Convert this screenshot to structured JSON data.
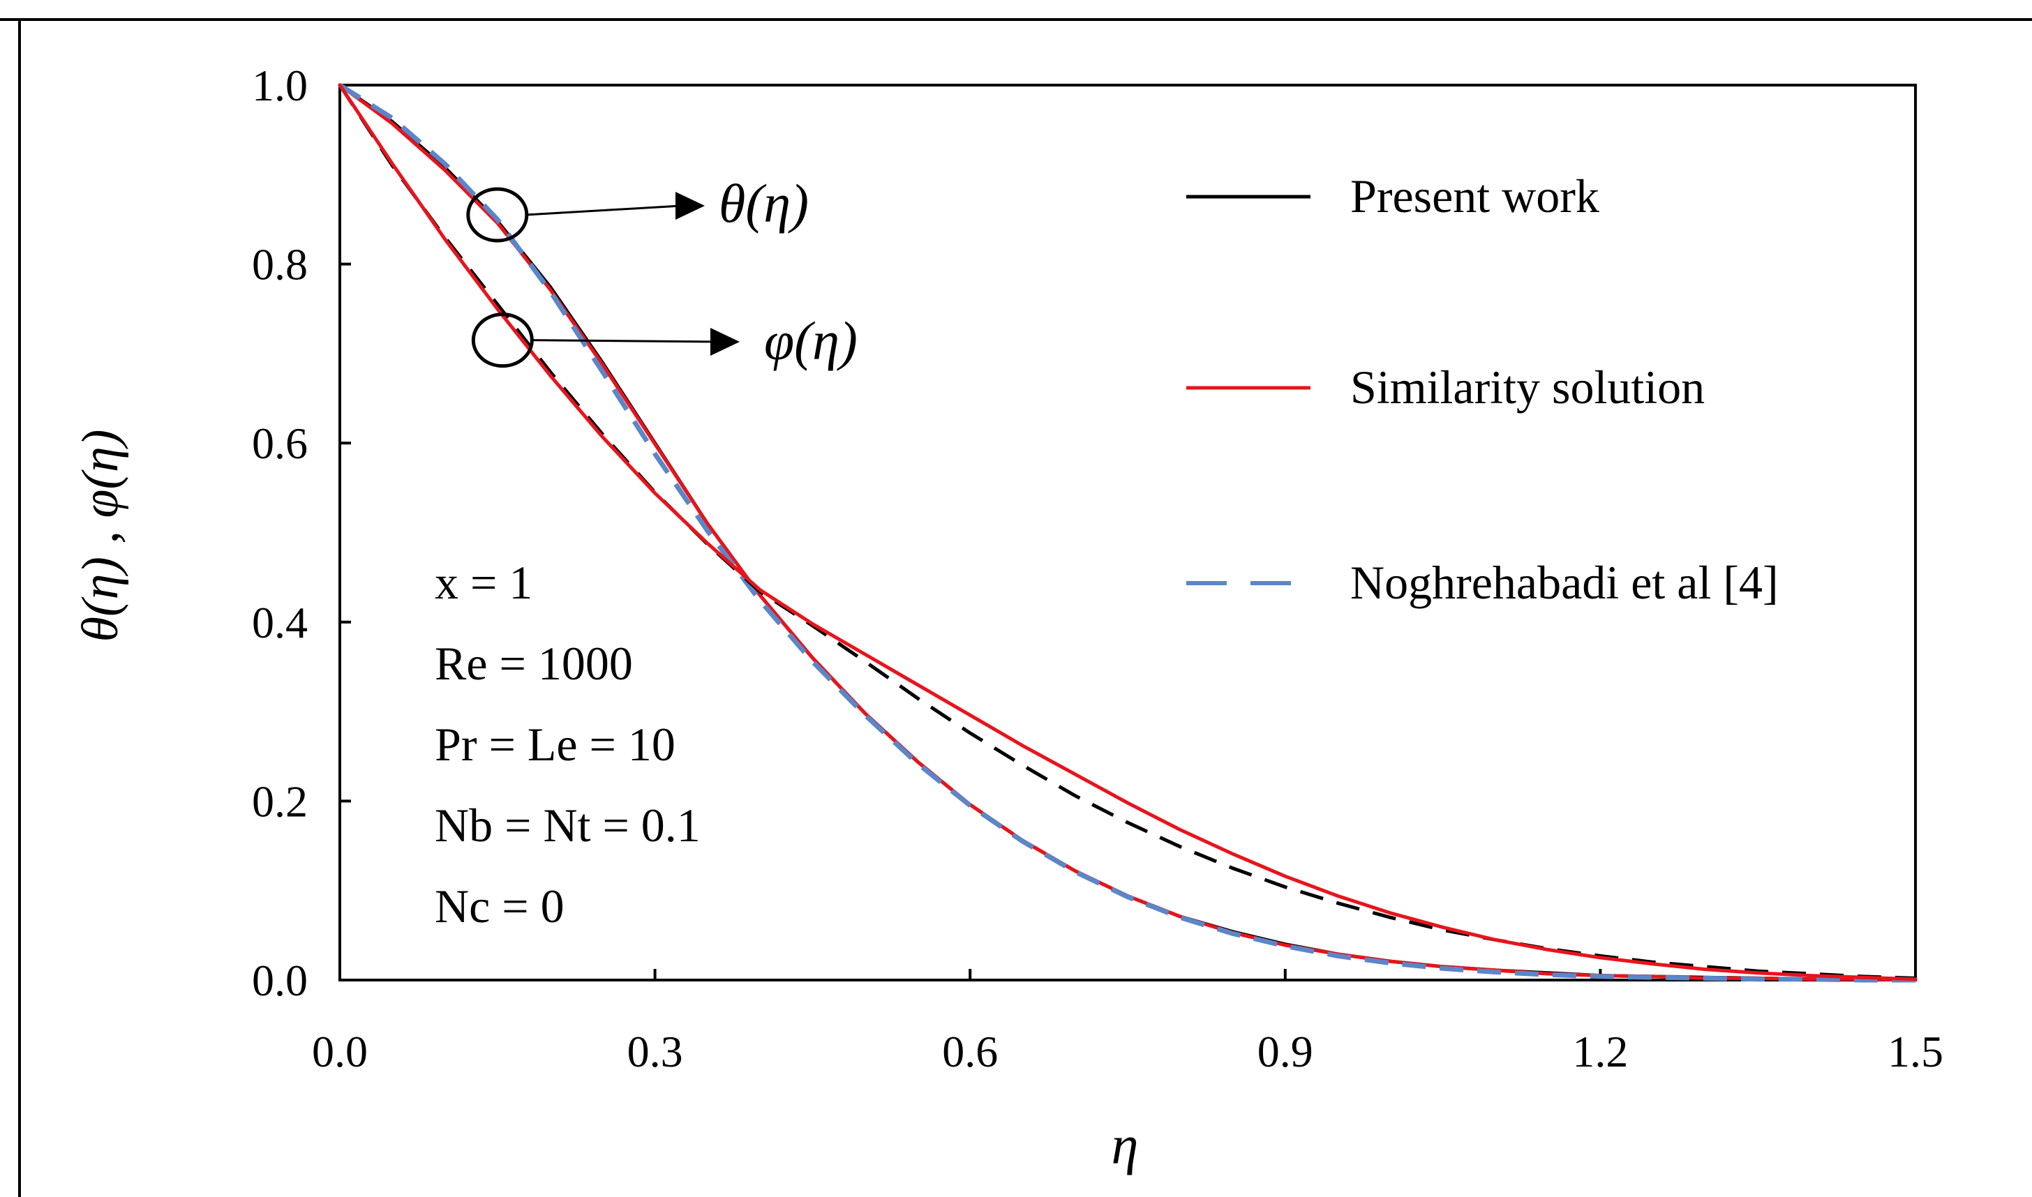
{
  "chart_data": {
    "type": "line",
    "title": "",
    "xlabel": "η",
    "ylabel": "θ(η) , φ(η)",
    "xlim": [
      0,
      1.5
    ],
    "ylim": [
      0,
      1.0
    ],
    "xticks": [
      "0.0",
      "0.3",
      "0.6",
      "0.9",
      "1.2",
      "1.5"
    ],
    "yticks": [
      "0.0",
      "0.2",
      "0.4",
      "0.6",
      "0.8",
      "1.0"
    ],
    "x": [
      0,
      0.05,
      0.1,
      0.15,
      0.2,
      0.25,
      0.3,
      0.35,
      0.4,
      0.45,
      0.5,
      0.55,
      0.6,
      0.65,
      0.7,
      0.75,
      0.8,
      0.85,
      0.9,
      0.95,
      1.0,
      1.05,
      1.1,
      1.15,
      1.2,
      1.25,
      1.3,
      1.35,
      1.4,
      1.45,
      1.5
    ],
    "series": [
      {
        "name": "θ(η) Present work",
        "legend": "Present work",
        "color": "#000000",
        "dash": "solid",
        "values": [
          1.0,
          0.959,
          0.908,
          0.848,
          0.775,
          0.69,
          0.6,
          0.51,
          0.43,
          0.36,
          0.298,
          0.244,
          0.196,
          0.156,
          0.122,
          0.094,
          0.071,
          0.054,
          0.04,
          0.029,
          0.021,
          0.015,
          0.011,
          0.008,
          0.005,
          0.004,
          0.003,
          0.002,
          0.001,
          0.001,
          0.0
        ]
      },
      {
        "name": "θ(η) Similarity solution",
        "legend": "Similarity solution",
        "color": "#e8141c",
        "dash": "solid",
        "values": [
          1.0,
          0.957,
          0.905,
          0.846,
          0.772,
          0.688,
          0.599,
          0.51,
          0.43,
          0.36,
          0.298,
          0.244,
          0.196,
          0.156,
          0.122,
          0.094,
          0.071,
          0.053,
          0.039,
          0.029,
          0.021,
          0.015,
          0.011,
          0.007,
          0.005,
          0.004,
          0.002,
          0.002,
          0.001,
          0.001,
          0.0
        ]
      },
      {
        "name": "θ(η) Noghrehabadi et al [4]",
        "legend": "Noghrehabadi et al [4]",
        "color": "#5b86c8",
        "dash": "dashed",
        "values": [
          1.0,
          0.963,
          0.912,
          0.85,
          0.77,
          0.68,
          0.588,
          0.502,
          0.424,
          0.356,
          0.296,
          0.242,
          0.195,
          0.155,
          0.121,
          0.093,
          0.07,
          0.052,
          0.038,
          0.027,
          0.019,
          0.013,
          0.009,
          0.006,
          0.004,
          0.003,
          0.002,
          0.001,
          0.001,
          0.0,
          0.0
        ]
      },
      {
        "name": "φ(η) Present work",
        "color": "#000000",
        "dash": "dashed",
        "values": [
          1.0,
          0.91,
          0.83,
          0.755,
          0.68,
          0.61,
          0.545,
          0.487,
          0.434,
          0.396,
          0.356,
          0.315,
          0.276,
          0.24,
          0.206,
          0.176,
          0.149,
          0.125,
          0.104,
          0.086,
          0.07,
          0.056,
          0.045,
          0.035,
          0.027,
          0.02,
          0.015,
          0.01,
          0.007,
          0.004,
          0.002
        ]
      },
      {
        "name": "φ(η) Similarity solution",
        "color": "#e8141c",
        "dash": "solid",
        "values": [
          1.0,
          0.912,
          0.828,
          0.75,
          0.676,
          0.607,
          0.544,
          0.488,
          0.436,
          0.398,
          0.364,
          0.33,
          0.296,
          0.262,
          0.23,
          0.198,
          0.168,
          0.141,
          0.116,
          0.094,
          0.075,
          0.059,
          0.045,
          0.034,
          0.025,
          0.018,
          0.012,
          0.008,
          0.005,
          0.003,
          0.001
        ]
      }
    ],
    "legend": {
      "placement": "top-right",
      "entries": [
        {
          "label": "Present work",
          "color": "#000000",
          "dash": "solid"
        },
        {
          "label": "Similarity solution",
          "color": "#e8141c",
          "dash": "solid"
        },
        {
          "label": "Noghrehabadi et al [4]",
          "color": "#5b86c8",
          "dash": "dashed"
        }
      ]
    },
    "annotations": [
      {
        "label": "θ(η)",
        "x": 0.15,
        "y": 0.855
      },
      {
        "label": "φ(η)",
        "x": 0.155,
        "y": 0.715
      }
    ],
    "parameters": [
      "x = 1",
      "Re = 1000",
      "Pr = Le = 10",
      "Nb = Nt = 0.1",
      "Nc = 0"
    ]
  }
}
